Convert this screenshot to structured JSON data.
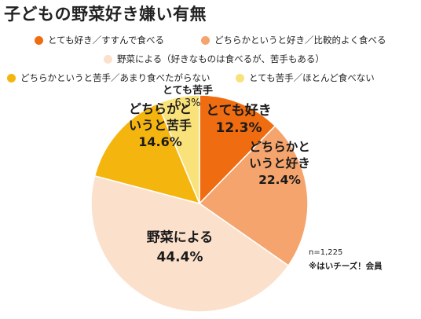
{
  "title": "子どもの野菜好き嫌い有無",
  "chart_data": {
    "type": "pie",
    "title": "子どもの野菜好き嫌い有無",
    "start_angle_deg": 0,
    "direction": "clockwise",
    "slices": [
      {
        "name": "とても好き／すすんで食べる",
        "short_label": [
          "とても好き"
        ],
        "value": 12.3,
        "value_label": "12.3%",
        "color": "#f06c10"
      },
      {
        "name": "どちらかというと好き／比較的よく食べる",
        "short_label": [
          "どちらかと",
          "いうと好き"
        ],
        "value": 22.4,
        "value_label": "22.4%",
        "color": "#f4a46c"
      },
      {
        "name": "野菜による（好きなものは食べるが、苦手もある）",
        "short_label": [
          "野菜による"
        ],
        "value": 44.4,
        "value_label": "44.4%",
        "color": "#fbe0cc"
      },
      {
        "name": "どちらかというと苦手／あまり食べたがらない",
        "short_label": [
          "どちらかと",
          "いうと苦手"
        ],
        "value": 14.6,
        "value_label": "14.6%",
        "color": "#f5b50f"
      },
      {
        "name": "とても苦手／ほとんど食べない",
        "short_label": [
          "とても苦手"
        ],
        "value": 6.3,
        "value_label": "6.3%",
        "color": "#fae27a"
      }
    ],
    "legend_position": "top",
    "annotations": [
      "n=1,225",
      "※はいチーズ！会員"
    ]
  }
}
